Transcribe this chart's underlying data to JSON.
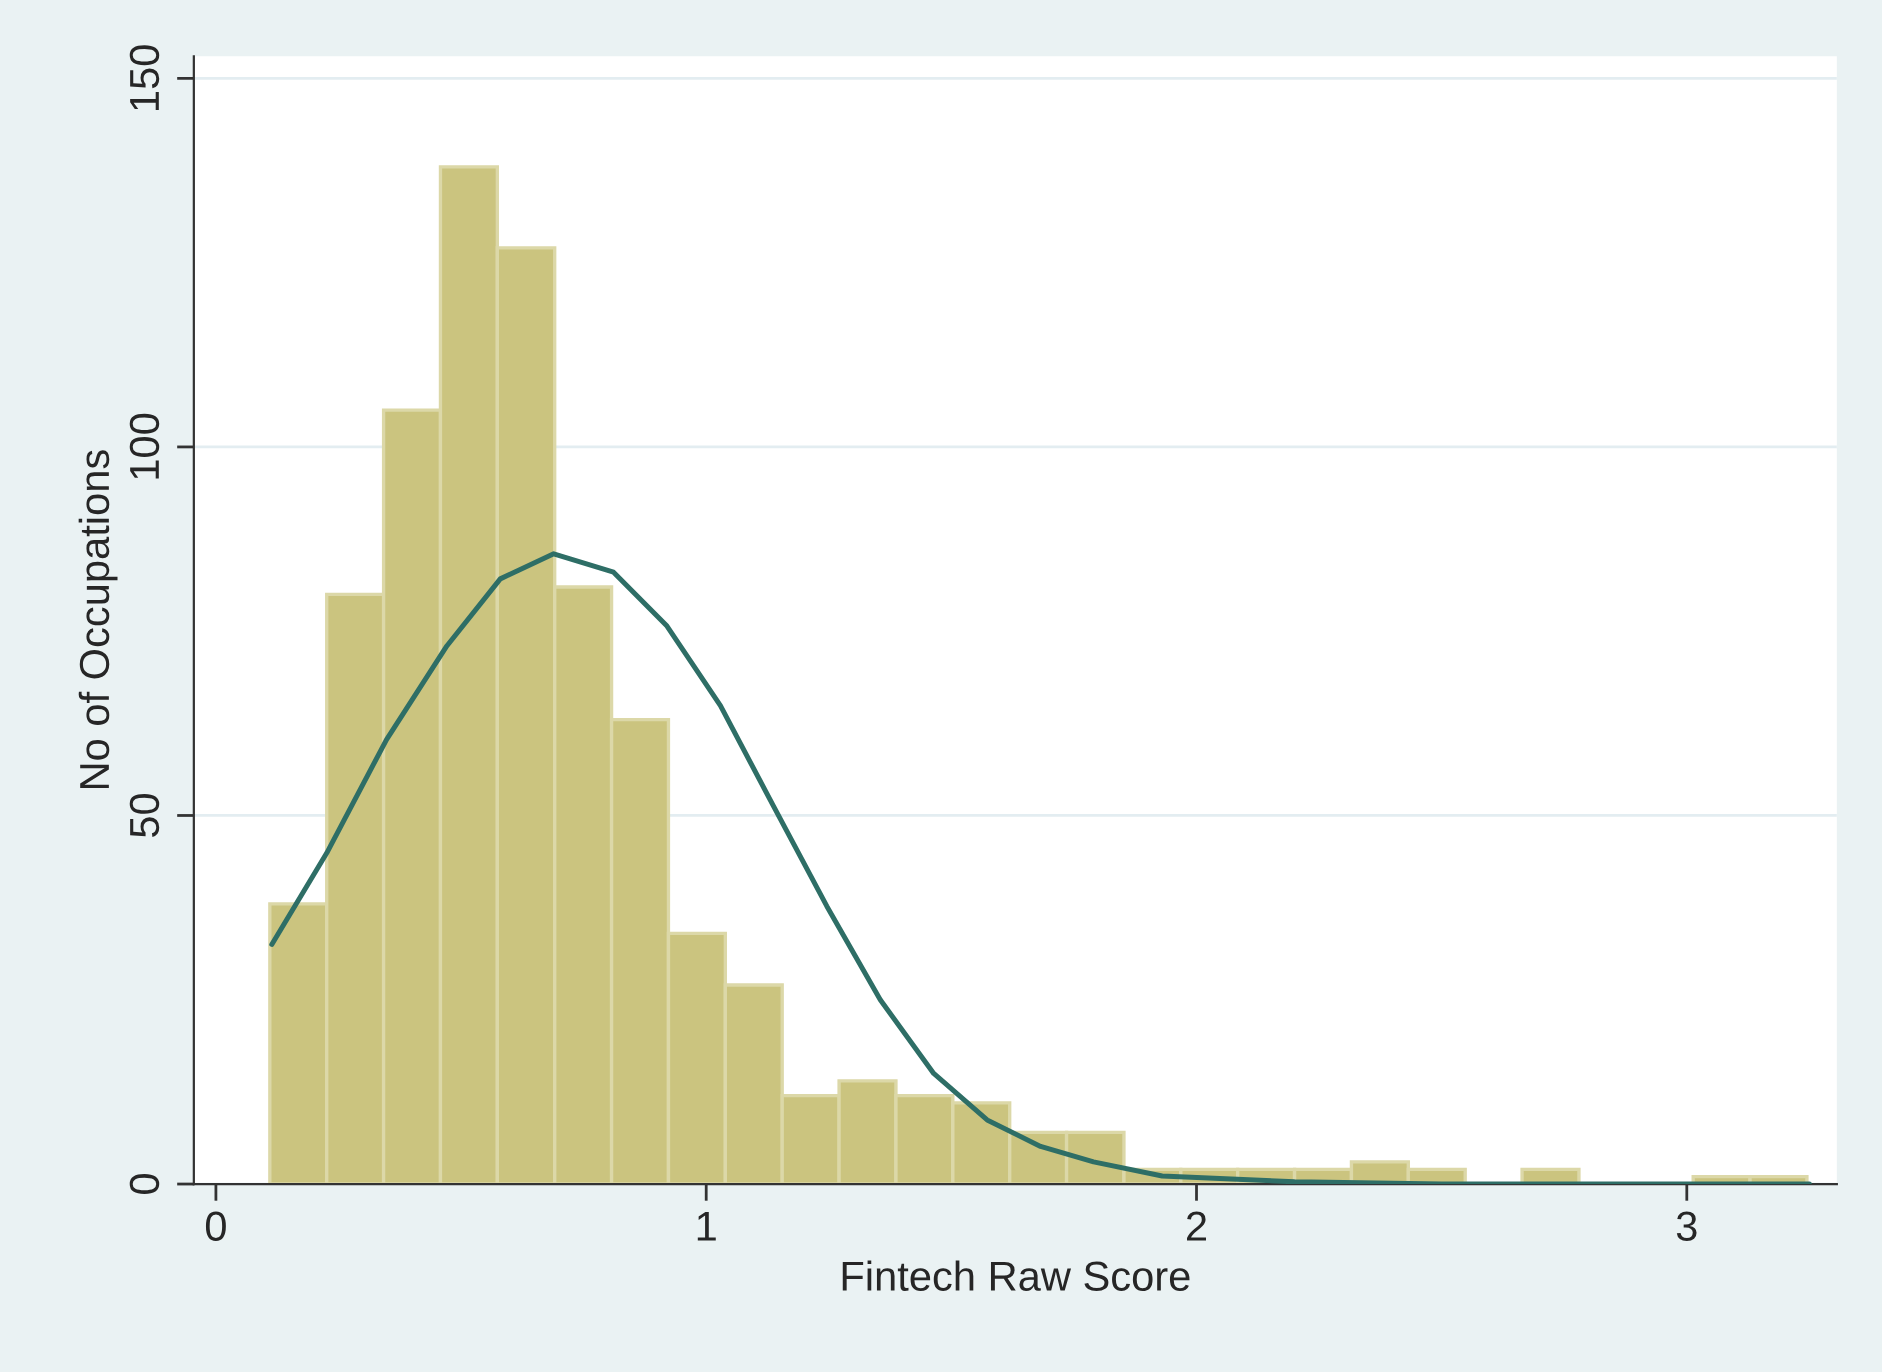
{
  "chart_data": {
    "type": "histogram",
    "xlabel": "Fintech Raw Score",
    "ylabel": "No of Occupations",
    "bins": [
      0.11,
      0.226,
      0.342,
      0.458,
      0.574,
      0.691,
      0.807,
      0.923,
      1.039,
      1.155,
      1.271,
      1.387,
      1.503,
      1.619,
      1.735,
      1.852,
      1.968,
      2.084,
      2.2,
      2.316,
      2.432,
      2.548,
      2.664,
      2.78,
      2.896,
      3.013,
      3.129,
      3.245
    ],
    "values": [
      38,
      80,
      105,
      138,
      127,
      81,
      63,
      34,
      27,
      12,
      14,
      12,
      11,
      7,
      7,
      2,
      2,
      2,
      2,
      3,
      2,
      0,
      2,
      0,
      0,
      1,
      1
    ],
    "color": "#cbc47f",
    "series": [
      {
        "type": "line",
        "color": "#2e6e66",
        "x": [
          0.114,
          0.226,
          0.348,
          0.471,
          0.58,
          0.689,
          0.811,
          0.92,
          1.029,
          1.137,
          1.246,
          1.355,
          1.464,
          1.573,
          1.682,
          1.79,
          1.93,
          2.2,
          2.5,
          3.25
        ],
        "values": [
          32.5,
          44.9,
          60.3,
          73.0,
          82.1,
          85.5,
          83.0,
          75.7,
          64.9,
          51.3,
          37.7,
          25.0,
          15.0,
          8.7,
          5.1,
          3.0,
          1.1,
          0.3,
          0,
          0
        ]
      }
    ],
    "xlim": [
      -0.045,
      3.306
    ],
    "xticks": [
      0,
      1,
      2,
      3
    ],
    "ylim": [
      0,
      153
    ],
    "yticks": [
      0,
      50,
      100,
      150
    ],
    "grid": "y",
    "legend": false
  }
}
